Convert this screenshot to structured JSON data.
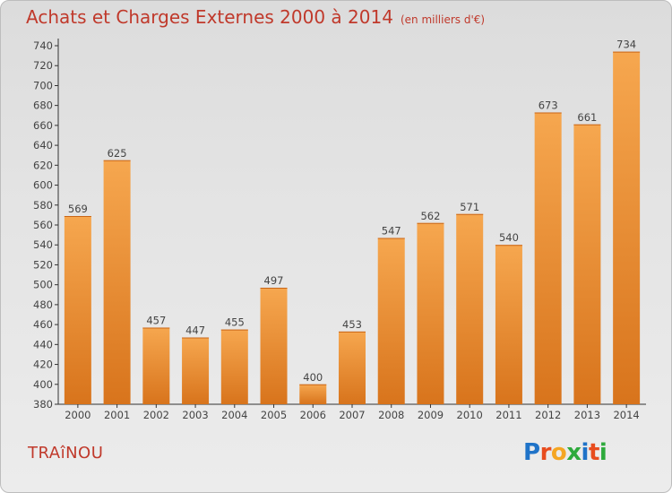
{
  "header": {
    "title": "Achats et Charges Externes 2000 à 2014",
    "subtitle": "(en milliers d'€)"
  },
  "footer": {
    "commune": "TRAîNOU",
    "logo_text": "Proxiti",
    "logo_colors": [
      "#1f73c8",
      "#e84c1e",
      "#f5a623",
      "#2eaa3c",
      "#1f73c8",
      "#e84c1e",
      "#2eaa3c"
    ]
  },
  "chart_data": {
    "type": "bar",
    "categories": [
      "2000",
      "2001",
      "2002",
      "2003",
      "2004",
      "2005",
      "2006",
      "2007",
      "2008",
      "2009",
      "2010",
      "2011",
      "2012",
      "2013",
      "2014"
    ],
    "values": [
      569,
      625,
      457,
      447,
      455,
      497,
      400,
      453,
      547,
      562,
      571,
      540,
      673,
      661,
      734
    ],
    "ylim": [
      380,
      740
    ],
    "yticks": [
      380,
      400,
      420,
      440,
      460,
      480,
      500,
      520,
      540,
      560,
      580,
      600,
      620,
      640,
      660,
      680,
      700,
      720,
      740
    ],
    "grid": false,
    "bar_color_top": "#f6a74f",
    "bar_color_bottom": "#d8741c",
    "label_color": "#444444",
    "axis_color": "#333333"
  }
}
